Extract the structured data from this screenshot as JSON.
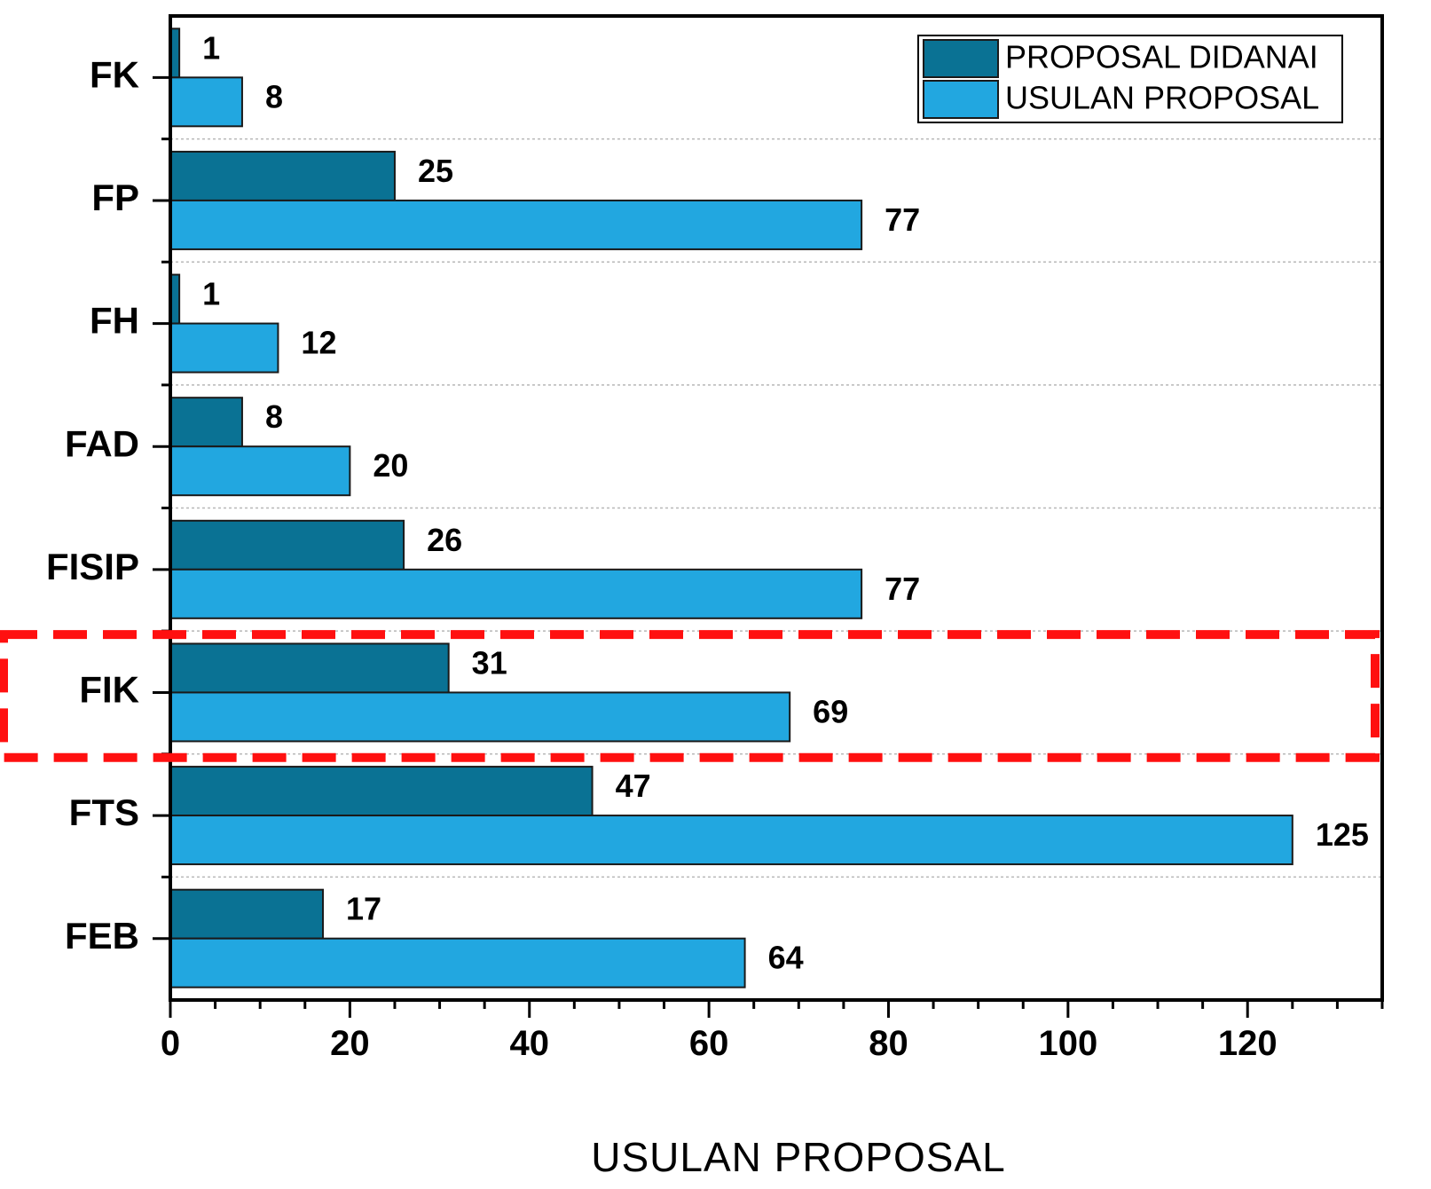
{
  "chart_data": {
    "type": "bar",
    "orientation": "horizontal",
    "categories": [
      "FK",
      "FP",
      "FH",
      "FAD",
      "FISIP",
      "FIK",
      "FTS",
      "FEB"
    ],
    "series": [
      {
        "name": "PROPOSAL DIDANAI",
        "color": "#0a7294",
        "values": [
          1,
          25,
          1,
          8,
          26,
          31,
          47,
          17
        ]
      },
      {
        "name": "USULAN PROPOSAL",
        "color": "#22a7e0",
        "values": [
          8,
          77,
          12,
          20,
          77,
          69,
          125,
          64
        ]
      }
    ],
    "xlabel": "USULAN PROPOSAL",
    "ylabel": "",
    "xlim": [
      0,
      135
    ],
    "xticks": [
      0,
      20,
      40,
      60,
      80,
      100,
      120
    ],
    "grid": "dashed horizontal separators between categories",
    "legend_position": "top-right",
    "highlight": {
      "category": "FIK",
      "style": "red dashed box",
      "color": "#ff1010"
    }
  }
}
